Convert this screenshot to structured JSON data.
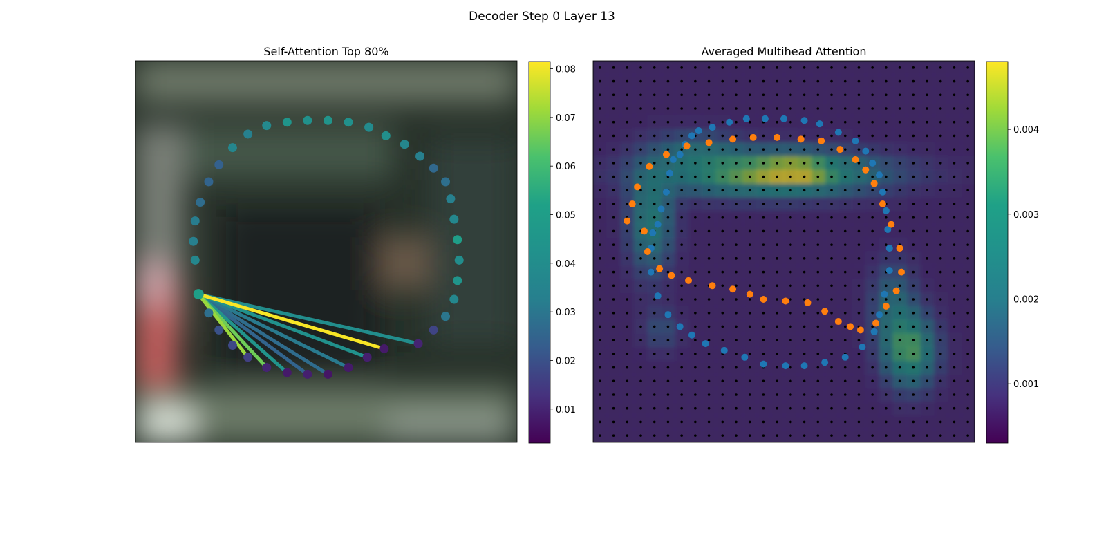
{
  "figure": {
    "suptitle": "Decoder Step 0 Layer 13"
  },
  "chart_data": [
    {
      "type": "scatter",
      "title": "Self-Attention Top 80%",
      "background_image": "blurred-scene-photo",
      "colormap": "viridis",
      "xlim": [
        0,
        112
      ],
      "ylim": [
        112,
        0
      ],
      "query_index": 0,
      "points": [
        {
          "x": 18.5,
          "y": 68.5,
          "v": 0.051
        },
        {
          "x": 21.5,
          "y": 74.0,
          "v": 0.028
        },
        {
          "x": 24.5,
          "y": 79.0,
          "v": 0.02
        },
        {
          "x": 28.5,
          "y": 83.5,
          "v": 0.018
        },
        {
          "x": 33.0,
          "y": 87.0,
          "v": 0.016
        },
        {
          "x": 38.5,
          "y": 90.0,
          "v": 0.01
        },
        {
          "x": 44.5,
          "y": 91.5,
          "v": 0.008
        },
        {
          "x": 50.5,
          "y": 92.0,
          "v": 0.009
        },
        {
          "x": 56.5,
          "y": 92.0,
          "v": 0.007
        },
        {
          "x": 62.5,
          "y": 90.0,
          "v": 0.008
        },
        {
          "x": 68.0,
          "y": 87.0,
          "v": 0.009
        },
        {
          "x": 73.0,
          "y": 84.5,
          "v": 0.008
        },
        {
          "x": 83.0,
          "y": 83.0,
          "v": 0.01
        },
        {
          "x": 87.5,
          "y": 79.0,
          "v": 0.017
        },
        {
          "x": 91.0,
          "y": 75.0,
          "v": 0.03
        },
        {
          "x": 93.5,
          "y": 70.0,
          "v": 0.037
        },
        {
          "x": 94.5,
          "y": 64.5,
          "v": 0.045
        },
        {
          "x": 95.0,
          "y": 58.5,
          "v": 0.04
        },
        {
          "x": 94.5,
          "y": 52.5,
          "v": 0.05
        },
        {
          "x": 93.5,
          "y": 46.5,
          "v": 0.037
        },
        {
          "x": 92.5,
          "y": 40.5,
          "v": 0.033
        },
        {
          "x": 91.0,
          "y": 35.5,
          "v": 0.028
        },
        {
          "x": 87.5,
          "y": 31.5,
          "v": 0.026
        },
        {
          "x": 83.5,
          "y": 28.0,
          "v": 0.033
        },
        {
          "x": 79.0,
          "y": 24.5,
          "v": 0.036
        },
        {
          "x": 73.5,
          "y": 22.0,
          "v": 0.041
        },
        {
          "x": 68.5,
          "y": 19.5,
          "v": 0.039
        },
        {
          "x": 62.5,
          "y": 18.0,
          "v": 0.042
        },
        {
          "x": 56.5,
          "y": 17.5,
          "v": 0.044
        },
        {
          "x": 50.5,
          "y": 17.5,
          "v": 0.042
        },
        {
          "x": 44.5,
          "y": 18.0,
          "v": 0.045
        },
        {
          "x": 38.5,
          "y": 19.0,
          "v": 0.038
        },
        {
          "x": 33.0,
          "y": 21.5,
          "v": 0.033
        },
        {
          "x": 28.5,
          "y": 25.5,
          "v": 0.036
        },
        {
          "x": 24.5,
          "y": 30.5,
          "v": 0.024
        },
        {
          "x": 21.5,
          "y": 35.5,
          "v": 0.025
        },
        {
          "x": 19.0,
          "y": 41.5,
          "v": 0.027
        },
        {
          "x": 17.5,
          "y": 47.0,
          "v": 0.032
        },
        {
          "x": 17.0,
          "y": 53.0,
          "v": 0.033
        },
        {
          "x": 17.5,
          "y": 58.5,
          "v": 0.037
        }
      ],
      "edges": [
        {
          "to": 12,
          "w": 0.04
        },
        {
          "to": 11,
          "w": 0.081
        },
        {
          "to": 10,
          "w": 0.042
        },
        {
          "to": 9,
          "w": 0.031
        },
        {
          "to": 8,
          "w": 0.027
        },
        {
          "to": 7,
          "w": 0.025
        },
        {
          "to": 6,
          "w": 0.044
        },
        {
          "to": 5,
          "w": 0.066
        },
        {
          "to": 4,
          "w": 0.071
        }
      ],
      "colorbar": {
        "range": [
          0.003,
          0.0815
        ],
        "ticks": [
          "0.01",
          "0.02",
          "0.03",
          "0.04",
          "0.05",
          "0.06",
          "0.07",
          "0.08"
        ],
        "tick_values": [
          0.01,
          0.02,
          0.03,
          0.04,
          0.05,
          0.06,
          0.07,
          0.08
        ]
      }
    },
    {
      "type": "heatmap",
      "title": "Averaged Multihead Attention",
      "colormap": "viridis",
      "grid": [
        28,
        28
      ],
      "xlim": [
        0,
        112
      ],
      "ylim": [
        112,
        0
      ],
      "value_range": [
        0.0003,
        0.0048
      ],
      "series": [
        {
          "color": "#1f77b4",
          "points": [
            [
              17.5,
              50.5
            ],
            [
              19,
              48
            ],
            [
              20,
              43.5
            ],
            [
              21.5,
              38.5
            ],
            [
              22.5,
              33
            ],
            [
              23.5,
              29
            ],
            [
              25.5,
              27.5
            ],
            [
              27,
              24.5
            ],
            [
              29,
              22
            ],
            [
              31,
              20.5
            ],
            [
              35,
              19.5
            ],
            [
              40,
              18
            ],
            [
              45,
              17
            ],
            [
              50.5,
              17
            ],
            [
              56,
              17
            ],
            [
              62,
              17.5
            ],
            [
              66.5,
              18.5
            ],
            [
              72,
              21
            ],
            [
              77,
              23.5
            ],
            [
              80,
              26.5
            ],
            [
              82,
              30
            ],
            [
              84,
              33.5
            ],
            [
              85,
              38.5
            ],
            [
              86,
              44
            ],
            [
              86.5,
              49.5
            ],
            [
              87,
              55
            ],
            [
              87,
              61.5
            ],
            [
              85.5,
              68.5
            ],
            [
              84,
              74.5
            ],
            [
              82.5,
              79.5
            ],
            [
              79,
              84
            ],
            [
              74,
              87
            ],
            [
              68,
              88.5
            ],
            [
              62,
              89.5
            ],
            [
              56.5,
              89.5
            ],
            [
              50,
              89
            ],
            [
              44.5,
              87
            ],
            [
              38.5,
              85
            ],
            [
              33,
              83
            ],
            [
              29,
              80.5
            ],
            [
              25.5,
              78
            ],
            [
              22,
              74.5
            ],
            [
              19,
              69
            ],
            [
              17,
              62
            ],
            [
              17,
              55
            ]
          ]
        },
        {
          "color": "#ff7f0e",
          "points": [
            [
              10,
              47
            ],
            [
              11.5,
              42
            ],
            [
              13,
              37
            ],
            [
              16.5,
              31
            ],
            [
              21.5,
              27.5
            ],
            [
              27.5,
              25
            ],
            [
              34,
              24
            ],
            [
              41,
              23
            ],
            [
              47,
              22.5
            ],
            [
              54,
              22.5
            ],
            [
              61,
              23
            ],
            [
              67,
              23.5
            ],
            [
              72.5,
              26
            ],
            [
              77,
              29
            ],
            [
              80,
              32
            ],
            [
              82.5,
              36
            ],
            [
              85,
              42
            ],
            [
              87.5,
              48
            ],
            [
              90,
              55
            ],
            [
              90.5,
              62
            ],
            [
              89,
              67.5
            ],
            [
              86,
              72
            ],
            [
              83,
              77
            ],
            [
              78.5,
              79
            ],
            [
              75.5,
              78
            ],
            [
              72,
              76.5
            ],
            [
              68,
              73.5
            ],
            [
              63,
              71
            ],
            [
              56.5,
              70.5
            ],
            [
              50,
              70
            ],
            [
              46,
              68.5
            ],
            [
              41,
              67
            ],
            [
              35,
              66
            ],
            [
              28,
              64.5
            ],
            [
              23,
              63
            ],
            [
              19.5,
              61
            ],
            [
              16,
              56
            ],
            [
              15,
              50
            ]
          ]
        }
      ],
      "colorbar": {
        "range": [
          0.0003,
          0.0048
        ],
        "ticks": [
          "0.001",
          "0.002",
          "0.003",
          "0.004"
        ],
        "tick_values": [
          0.001,
          0.002,
          0.003,
          0.004
        ]
      }
    }
  ]
}
